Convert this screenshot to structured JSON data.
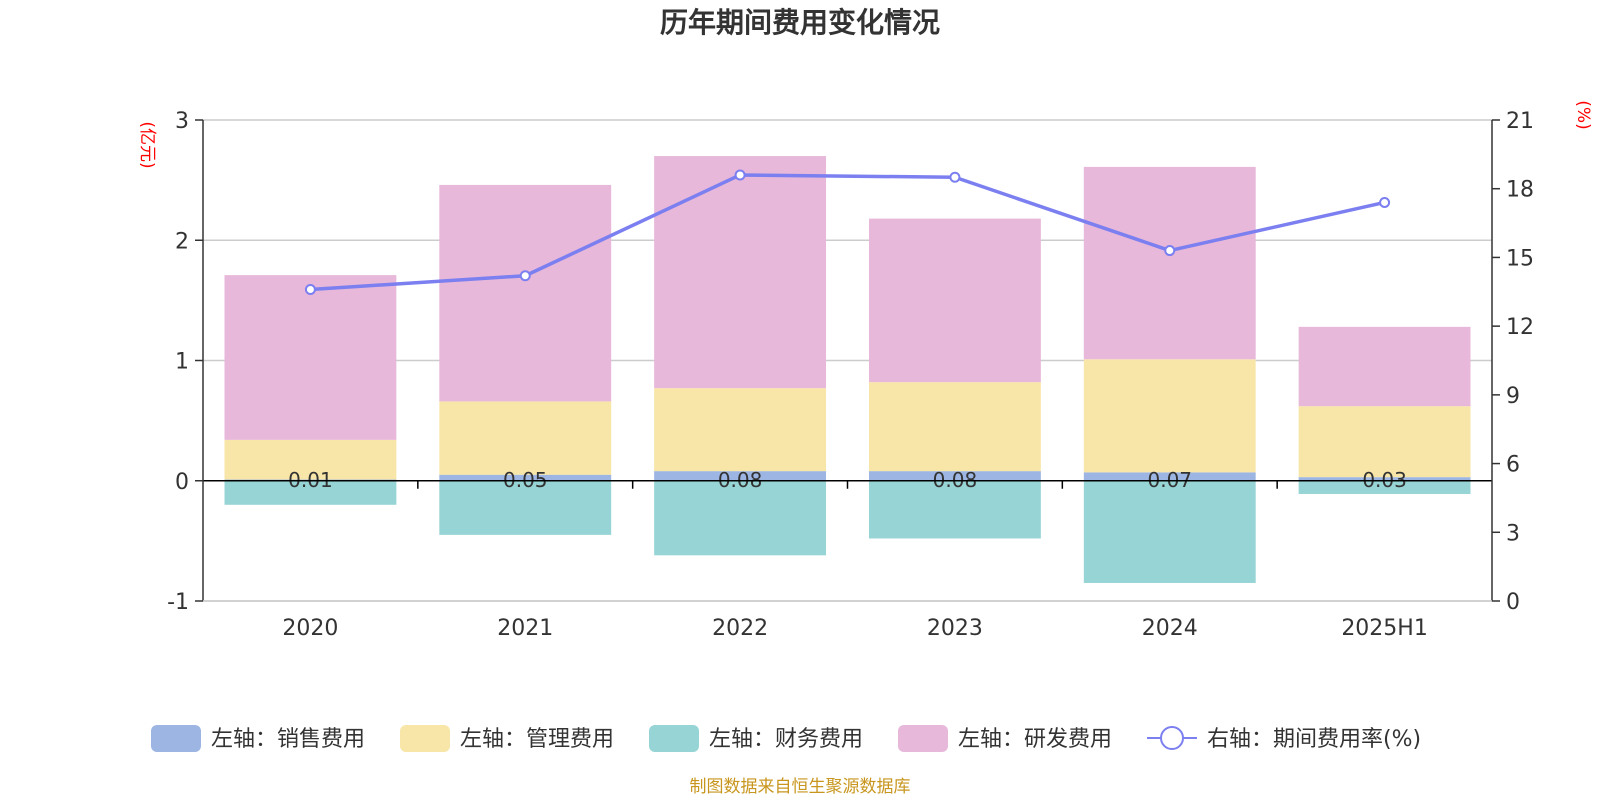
{
  "chart_data": {
    "type": "bar",
    "title": "历年期间费用变化情况",
    "categories": [
      "2020",
      "2021",
      "2022",
      "2023",
      "2024",
      "2025H1"
    ],
    "left_axis": {
      "unit": "(亿元)",
      "ylim": [
        -1,
        3
      ],
      "ticks": [
        -1,
        0,
        1,
        2,
        3
      ]
    },
    "right_axis": {
      "unit": "(%)",
      "ylim": [
        0,
        21
      ],
      "ticks": [
        0,
        3,
        6,
        9,
        12,
        15,
        18,
        21
      ]
    },
    "series": [
      {
        "name": "左轴：销售费用",
        "kind": "bar",
        "axis": "left",
        "color": "#9db5e2",
        "values": [
          0.01,
          0.05,
          0.08,
          0.08,
          0.07,
          0.03
        ],
        "labels": [
          "0.01",
          "0.05",
          "0.08",
          "0.08",
          "0.07",
          "0.03"
        ]
      },
      {
        "name": "左轴：管理费用",
        "kind": "bar",
        "axis": "left",
        "color": "#f8e6a8",
        "values": [
          0.33,
          0.61,
          0.69,
          0.74,
          0.94,
          0.59
        ]
      },
      {
        "name": "左轴：财务费用",
        "kind": "bar",
        "axis": "left",
        "color": "#97d4d5",
        "values": [
          -0.2,
          -0.45,
          -0.62,
          -0.48,
          -0.85,
          -0.11
        ]
      },
      {
        "name": "左轴：研发费用",
        "kind": "bar",
        "axis": "left",
        "color": "#e7b8da",
        "values": [
          1.37,
          1.8,
          1.93,
          1.36,
          1.6,
          0.66
        ]
      },
      {
        "name": "右轴：期间费用率(%)",
        "kind": "line",
        "axis": "right",
        "color": "#7b7ff0",
        "values": [
          13.6,
          14.2,
          18.6,
          18.5,
          15.3,
          17.4
        ]
      }
    ],
    "legend_position": "bottom",
    "grid": true
  },
  "footer": {
    "source": "制图数据来自恒生聚源数据库"
  }
}
